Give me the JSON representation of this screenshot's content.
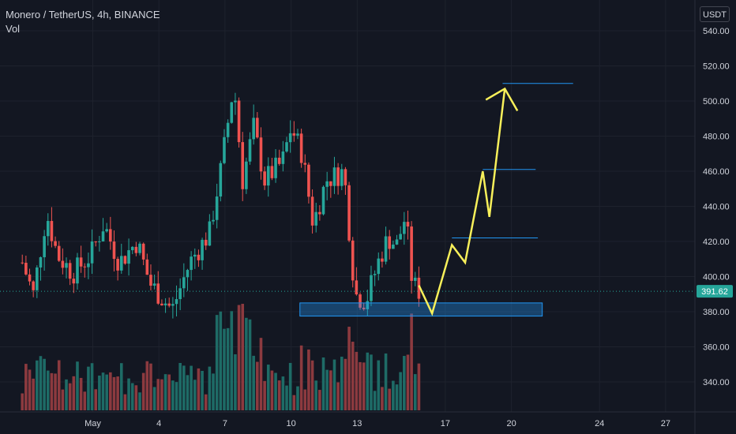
{
  "header": {
    "title": "Monero / TetherUS, 4h, BINANCE",
    "volume_label": "Vol",
    "currency_button": "USDT"
  },
  "colors": {
    "background": "#131722",
    "up": "#26a69a",
    "down": "#ef5350",
    "vol_up": "#1e6b66",
    "vol_down": "#8c3a3f",
    "grid": "#1e222d",
    "axis_text": "#d1d4dc",
    "annotation": "#f8f05a",
    "zone_border": "#2196f3",
    "last_price_bg": "#26a69a"
  },
  "chart_data": {
    "type": "candlestick",
    "symbol": "Monero / TetherUS",
    "interval": "4h",
    "exchange": "BINANCE",
    "y_axis": {
      "unit": "USDT",
      "ticks": [
        340,
        360,
        380,
        400,
        420,
        440,
        460,
        480,
        500,
        520,
        540
      ],
      "range": [
        322,
        550
      ]
    },
    "x_axis": {
      "tick_labels": [
        "May",
        "4",
        "7",
        "10",
        "13",
        "17",
        "20",
        "24",
        "27"
      ],
      "tick_days": [
        1,
        4,
        7,
        10,
        13,
        17,
        20,
        24,
        27
      ]
    },
    "last_price": "391.62",
    "candle_anchors": [
      {
        "day": -2.2,
        "close": 408
      },
      {
        "day": -1.7,
        "close": 390
      },
      {
        "day": -1.1,
        "close": 436
      },
      {
        "day": -0.6,
        "close": 412
      },
      {
        "day": 0.1,
        "close": 402
      },
      {
        "day": 0.9,
        "close": 412
      },
      {
        "day": 1.5,
        "close": 430
      },
      {
        "day": 2.2,
        "close": 408
      },
      {
        "day": 3.0,
        "close": 420
      },
      {
        "day": 3.6,
        "close": 396
      },
      {
        "day": 4.6,
        "close": 381
      },
      {
        "day": 5.4,
        "close": 408
      },
      {
        "day": 6.3,
        "close": 425
      },
      {
        "day": 6.8,
        "close": 460
      },
      {
        "day": 7.4,
        "close": 510
      },
      {
        "day": 7.8,
        "close": 455
      },
      {
        "day": 8.3,
        "close": 485
      },
      {
        "day": 8.8,
        "close": 455
      },
      {
        "day": 9.6,
        "close": 465
      },
      {
        "day": 10.0,
        "close": 485
      },
      {
        "day": 10.5,
        "close": 470
      },
      {
        "day": 11.0,
        "close": 430
      },
      {
        "day": 11.6,
        "close": 455
      },
      {
        "day": 12.4,
        "close": 460
      },
      {
        "day": 12.9,
        "close": 390
      },
      {
        "day": 13.4,
        "close": 386
      },
      {
        "day": 14.0,
        "close": 410
      },
      {
        "day": 14.4,
        "close": 422
      },
      {
        "day": 14.8,
        "close": 418
      },
      {
        "day": 15.2,
        "close": 435
      },
      {
        "day": 15.5,
        "close": 396
      },
      {
        "day": 15.8,
        "close": 392
      }
    ],
    "volume_range": [
      0,
      1
    ],
    "annotations": {
      "support_zone": {
        "day_start": 10.4,
        "day_end": 21.4,
        "price_low": 377.5,
        "price_high": 385
      },
      "target_lines": [
        {
          "day_start": 17.3,
          "day_end": 21.2,
          "price": 422
        },
        {
          "day_start": 18.7,
          "day_end": 21.1,
          "price": 461
        },
        {
          "day_start": 19.6,
          "day_end": 22.8,
          "price": 510
        }
      ],
      "projection_path": [
        {
          "day": 15.8,
          "price": 395
        },
        {
          "day": 16.4,
          "price": 379
        },
        {
          "day": 17.3,
          "price": 418
        },
        {
          "day": 17.9,
          "price": 408
        },
        {
          "day": 18.7,
          "price": 460
        },
        {
          "day": 19.0,
          "price": 434
        },
        {
          "day": 19.7,
          "price": 507
        }
      ]
    }
  }
}
